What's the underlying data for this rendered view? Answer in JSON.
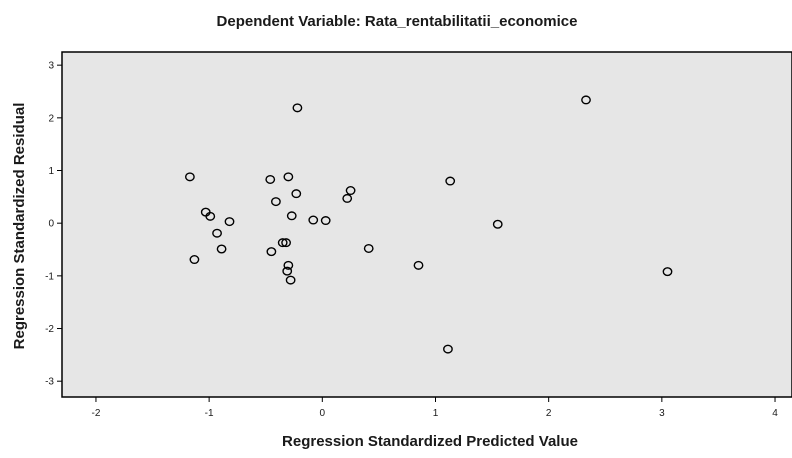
{
  "chart_data": {
    "type": "scatter",
    "title": "Dependent Variable: Rata_rentabilitatii_economice",
    "xlabel": "Regression Standardized Predicted Value",
    "ylabel": "Regression Standardized Residual",
    "xlim": [
      -2.3,
      4.15
    ],
    "ylim": [
      -3.3,
      3.25
    ],
    "xticks": [
      -2,
      -1,
      0,
      1,
      2,
      3,
      4
    ],
    "yticks": [
      3,
      2,
      1,
      0,
      -1,
      -2,
      -3
    ],
    "grid": false,
    "background": "#e6e6e6",
    "marker_color": "#000000",
    "points": [
      {
        "x": -1.17,
        "y": 0.88
      },
      {
        "x": -1.13,
        "y": -0.69
      },
      {
        "x": -1.03,
        "y": 0.21
      },
      {
        "x": -0.99,
        "y": 0.13
      },
      {
        "x": -0.93,
        "y": -0.19
      },
      {
        "x": -0.89,
        "y": -0.49
      },
      {
        "x": -0.82,
        "y": 0.03
      },
      {
        "x": -0.46,
        "y": 0.83
      },
      {
        "x": -0.45,
        "y": -0.54
      },
      {
        "x": -0.41,
        "y": 0.41
      },
      {
        "x": -0.35,
        "y": -0.37
      },
      {
        "x": -0.32,
        "y": -0.37
      },
      {
        "x": -0.31,
        "y": -0.91
      },
      {
        "x": -0.3,
        "y": 0.88
      },
      {
        "x": -0.3,
        "y": -0.8
      },
      {
        "x": -0.28,
        "y": -1.08
      },
      {
        "x": -0.27,
        "y": 0.14
      },
      {
        "x": -0.23,
        "y": 0.56
      },
      {
        "x": -0.22,
        "y": 2.19
      },
      {
        "x": -0.08,
        "y": 0.06
      },
      {
        "x": 0.03,
        "y": 0.05
      },
      {
        "x": 0.22,
        "y": 0.47
      },
      {
        "x": 0.25,
        "y": 0.62
      },
      {
        "x": 0.41,
        "y": -0.48
      },
      {
        "x": 0.85,
        "y": -0.8
      },
      {
        "x": 1.11,
        "y": -2.39
      },
      {
        "x": 1.13,
        "y": 0.8
      },
      {
        "x": 1.55,
        "y": -0.02
      },
      {
        "x": 2.33,
        "y": 2.34
      },
      {
        "x": 3.05,
        "y": -0.92
      }
    ]
  }
}
